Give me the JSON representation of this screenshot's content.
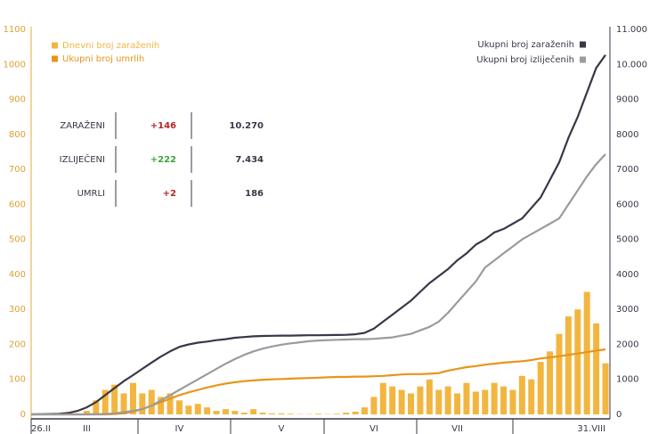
{
  "chart_data": {
    "type": "combo",
    "categories": [
      "26.II",
      null,
      null,
      null,
      null,
      null,
      "III",
      null,
      null,
      null,
      null,
      null,
      null,
      null,
      null,
      null,
      "IV",
      null,
      null,
      null,
      null,
      null,
      null,
      null,
      null,
      null,
      null,
      "V",
      null,
      null,
      null,
      null,
      null,
      null,
      null,
      null,
      null,
      "VI",
      null,
      null,
      null,
      null,
      null,
      null,
      null,
      null,
      "VII",
      null,
      null,
      null,
      null,
      null,
      null,
      null,
      null,
      null,
      null,
      null,
      null,
      null,
      null,
      null,
      "31.VIII"
    ],
    "ylim": [
      0,
      1100
    ],
    "yticks": [
      0,
      100,
      200,
      300,
      400,
      500,
      600,
      700,
      800,
      900,
      1000,
      1100
    ],
    "y2lim": [
      0,
      11000
    ],
    "y2ticks": [
      0,
      1000,
      2000,
      3000,
      4000,
      5000,
      6000,
      7000,
      8000,
      9000,
      {
        "value": 10000,
        "label": "10.000"
      },
      {
        "value": 11000,
        "label": "11.000"
      }
    ],
    "grid": false,
    "series": [
      {
        "name": "Dnevni broj zaraženih",
        "type": "bar",
        "color": "#f2b640",
        "legend": "left",
        "values": [
          0,
          0,
          0,
          0,
          1,
          3,
          10,
          40,
          70,
          85,
          60,
          90,
          60,
          70,
          50,
          60,
          40,
          25,
          30,
          20,
          10,
          15,
          10,
          5,
          15,
          5,
          3,
          3,
          2,
          1,
          1,
          2,
          1,
          2,
          5,
          8,
          20,
          50,
          90,
          80,
          70,
          60,
          80,
          100,
          70,
          80,
          60,
          90,
          65,
          70,
          90,
          80,
          70,
          110,
          100,
          150,
          180,
          230,
          280,
          300,
          350,
          260,
          146
        ]
      },
      {
        "name": "Ukupni broj umrlih",
        "type": "line",
        "color": "#e8951a",
        "legend": "left",
        "values": [
          0,
          0,
          0,
          0,
          0,
          0,
          0,
          0,
          0,
          1,
          3,
          8,
          15,
          25,
          35,
          45,
          55,
          63,
          70,
          77,
          83,
          88,
          92,
          95,
          97,
          99,
          100,
          101,
          102,
          103,
          104,
          105,
          106,
          107,
          107,
          108,
          108,
          109,
          110,
          112,
          114,
          115,
          115,
          116,
          118,
          125,
          130,
          135,
          138,
          142,
          145,
          148,
          150,
          152,
          155,
          160,
          163,
          166,
          170,
          174,
          178,
          182,
          186
        ]
      },
      {
        "name": "Ukupni broj zaraženih",
        "type": "line",
        "axis": "y2",
        "color": "#3b3648",
        "legend": "right",
        "values": [
          1,
          5,
          10,
          15,
          40,
          100,
          200,
          350,
          550,
          750,
          950,
          1120,
          1300,
          1480,
          1650,
          1800,
          1930,
          2000,
          2050,
          2080,
          2120,
          2150,
          2190,
          2210,
          2230,
          2240,
          2245,
          2250,
          2250,
          2255,
          2260,
          2260,
          2265,
          2270,
          2275,
          2290,
          2330,
          2450,
          2650,
          2850,
          3050,
          3250,
          3500,
          3750,
          3950,
          4150,
          4400,
          4600,
          4850,
          5000,
          5200,
          5300,
          5450,
          5600,
          5900,
          6200,
          6700,
          7200,
          7900,
          8500,
          9200,
          9900,
          10270
        ]
      },
      {
        "name": "Ukupni broj izliječenih",
        "type": "line",
        "axis": "y2",
        "color": "#9b9b9f",
        "legend": "right",
        "values": [
          0,
          0,
          0,
          0,
          0,
          0,
          0,
          2,
          10,
          30,
          60,
          100,
          150,
          250,
          400,
          550,
          700,
          850,
          1000,
          1150,
          1300,
          1450,
          1580,
          1700,
          1800,
          1880,
          1940,
          1990,
          2030,
          2060,
          2090,
          2110,
          2120,
          2130,
          2140,
          2150,
          2150,
          2160,
          2180,
          2200,
          2250,
          2300,
          2400,
          2500,
          2650,
          2900,
          3200,
          3500,
          3800,
          4200,
          4400,
          4600,
          4800,
          5000,
          5150,
          5300,
          5450,
          5600,
          6000,
          6400,
          6800,
          7150,
          7434
        ]
      }
    ]
  },
  "stats_table": {
    "rows": [
      {
        "label": "ZARAŽENI",
        "change": "+146",
        "change_color": "#b5262a",
        "total": "10.270"
      },
      {
        "label": "IZLIJEČENI",
        "change": "+222",
        "change_color": "#3ba53b",
        "total": "7.434"
      },
      {
        "label": "UMRLI",
        "change": "+2",
        "change_color": "#b5262a",
        "total": "186"
      }
    ]
  }
}
